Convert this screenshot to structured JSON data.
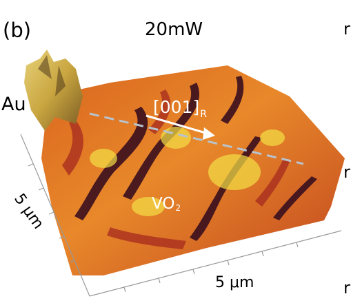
{
  "panel_label": "(b)",
  "title": "20mW",
  "labels": {
    "au": "Au",
    "direction_main": "[001]",
    "direction_sub": "R",
    "vo2_main": "VO",
    "vo2_sub": "2",
    "scale_y": "5 μm",
    "scale_x": "5 μm"
  },
  "edge_fragments": [
    "r",
    "r",
    "r"
  ],
  "colors": {
    "dark_stripe": "#3a0f1e",
    "mid": "#b3321f",
    "bright": "#f29a22",
    "highlight": "#f4e046",
    "gold_peak": "#c9a640",
    "dashed_line": "#b7c3cf",
    "arrow": "#ffffff"
  }
}
